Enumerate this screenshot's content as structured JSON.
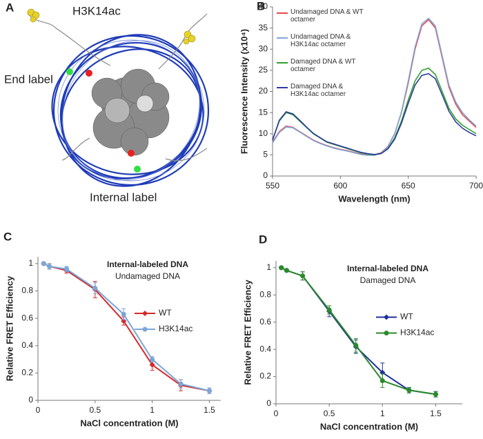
{
  "panel_a": {
    "panel": "A",
    "tail_label": "H3K14ac",
    "end_label": "End label",
    "internal_label": "Internal label"
  },
  "chart_data": [
    {
      "type": "line",
      "panel": "B",
      "xlabel": "Wavelength (nm)",
      "ylabel": "Fluorescence Intensity (x10⁴)",
      "x": [
        550,
        555,
        560,
        565,
        570,
        575,
        580,
        585,
        590,
        595,
        600,
        605,
        610,
        615,
        620,
        625,
        630,
        635,
        640,
        645,
        650,
        655,
        660,
        665,
        670,
        675,
        680,
        685,
        690,
        695,
        700
      ],
      "xlim": [
        550,
        700
      ],
      "xticks": [
        550,
        600,
        650,
        700
      ],
      "ylim": [
        0,
        40
      ],
      "yticks": [
        0,
        5,
        10,
        15,
        20,
        25,
        30,
        35,
        40
      ],
      "legend": "upper left",
      "series": [
        {
          "name": "Undamaged DNA & WT octamer",
          "color": "#e8474a",
          "values": [
            8,
            10.5,
            11.8,
            11.5,
            10.5,
            9.5,
            8.5,
            7.8,
            7.2,
            6.7,
            6.3,
            6,
            5.6,
            5.2,
            5,
            5,
            5.5,
            7,
            10,
            15,
            22,
            30,
            35.5,
            37,
            35,
            28,
            21,
            17,
            14.5,
            13,
            11.5
          ]
        },
        {
          "name": "Undamaged DNA & H3K14ac octamer",
          "color": "#7da7d9",
          "values": [
            7.8,
            10.3,
            11.6,
            11.4,
            10.4,
            9.4,
            8.4,
            7.7,
            7.1,
            6.6,
            6.2,
            5.9,
            5.5,
            5.1,
            4.9,
            4.9,
            5.4,
            6.9,
            9.9,
            15.2,
            22.5,
            30.5,
            36,
            37.3,
            35.5,
            28.5,
            21.5,
            17.5,
            15,
            13.3,
            11.8
          ]
        },
        {
          "name": "Damaged DNA & WT octamer",
          "color": "#2ca02c",
          "values": [
            8.5,
            13,
            15,
            14.5,
            13,
            11.5,
            10,
            9,
            8,
            7.5,
            7,
            6.5,
            6,
            5.5,
            5.2,
            5,
            5.3,
            6.5,
            9,
            13,
            18,
            22.5,
            25,
            25.5,
            24,
            20,
            16,
            13.5,
            12,
            11,
            10
          ]
        },
        {
          "name": "Damaged DNA & H3K14ac octamer",
          "color": "#2b3a9e",
          "values": [
            8.5,
            13.2,
            15.2,
            14.7,
            13.2,
            11.6,
            10.1,
            9.1,
            8.1,
            7.6,
            7.1,
            6.6,
            6.1,
            5.6,
            5.3,
            5.1,
            5.3,
            6.4,
            8.7,
            12.5,
            17.2,
            21.5,
            23.8,
            24.2,
            23,
            19.2,
            15.3,
            12.8,
            11.3,
            10.3,
            9.5
          ]
        }
      ]
    },
    {
      "type": "line",
      "panel": "C",
      "xlabel": "NaCl concentration (M)",
      "ylabel": "Relative FRET Efficiency",
      "annotations": [
        "Internal-labeled DNA",
        "Undamaged DNA"
      ],
      "x": [
        0.05,
        0.1,
        0.25,
        0.5,
        0.75,
        1,
        1.25,
        1.5
      ],
      "xlim": [
        0,
        1.6
      ],
      "xticks": [
        0,
        0.5,
        1,
        1.5
      ],
      "ylim": [
        0,
        1.05
      ],
      "yticks": [
        0,
        0.2,
        0.4,
        0.6,
        0.8,
        1
      ],
      "legend": "center right",
      "series": [
        {
          "name": "WT",
          "color": "#d62728",
          "marker": "diamond",
          "values": [
            1,
            0.98,
            0.95,
            0.81,
            0.58,
            0.26,
            0.11,
            0.07
          ],
          "errors": [
            0.01,
            0.02,
            0.02,
            0.06,
            0.03,
            0.04,
            0.04,
            0.02
          ]
        },
        {
          "name": "H3K14ac",
          "color": "#7aa6d9",
          "marker": "circle",
          "values": [
            1,
            0.98,
            0.96,
            0.82,
            0.63,
            0.3,
            0.12,
            0.07
          ],
          "errors": [
            0.01,
            0.02,
            0.02,
            0.04,
            0.04,
            0.02,
            0.03,
            0.02
          ]
        }
      ]
    },
    {
      "type": "line",
      "panel": "D",
      "xlabel": "NaCl concentration (M)",
      "ylabel": "Relative FRET Efficiency",
      "annotations": [
        "Internal-labeled DNA",
        "Damaged DNA"
      ],
      "x": [
        0.05,
        0.1,
        0.25,
        0.5,
        0.75,
        1,
        1.25,
        1.5
      ],
      "xlim": [
        0,
        1.75
      ],
      "xticks": [
        0,
        0.5,
        1,
        1.5
      ],
      "ylim": [
        0,
        1.05
      ],
      "yticks": [
        0,
        0.2,
        0.4,
        0.6,
        0.8,
        1
      ],
      "legend": "center right",
      "series": [
        {
          "name": "WT",
          "color": "#1f2f99",
          "marker": "diamond",
          "values": [
            1,
            0.98,
            0.94,
            0.68,
            0.42,
            0.23,
            0.1,
            0.07
          ],
          "errors": [
            0.01,
            0.01,
            0.03,
            0.04,
            0.05,
            0.07,
            0.02,
            0.02
          ]
        },
        {
          "name": "H3K14ac",
          "color": "#2a8a2a",
          "marker": "circle",
          "values": [
            1,
            0.98,
            0.94,
            0.69,
            0.43,
            0.17,
            0.1,
            0.07
          ],
          "errors": [
            0.01,
            0.01,
            0.03,
            0.03,
            0.05,
            0.05,
            0.02,
            0.02
          ]
        }
      ]
    }
  ]
}
